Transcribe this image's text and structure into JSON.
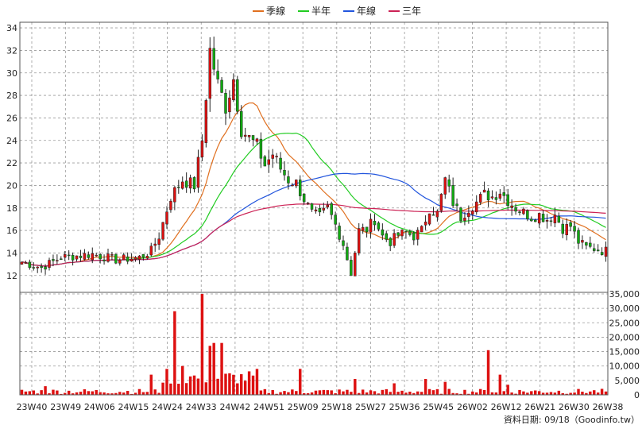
{
  "chart_data": {
    "type": "candlestick",
    "legend": {
      "position": "top-center",
      "items": [
        {
          "label": "季線",
          "color": "#e07020"
        },
        {
          "label": "半年",
          "color": "#22cc22"
        },
        {
          "label": "年線",
          "color": "#2255dd"
        },
        {
          "label": "三年",
          "color": "#cc2255"
        }
      ]
    },
    "price_axis": {
      "ticks": [
        12,
        14,
        16,
        18,
        20,
        22,
        24,
        26,
        28,
        30,
        32,
        34
      ],
      "range": [
        10.5,
        34.5
      ],
      "grid": true
    },
    "volume_axis": {
      "ticks": [
        "0",
        "5,000",
        "10,000",
        "15,000",
        "20,000",
        "25,000",
        "30,000",
        "35,000"
      ],
      "max": 35000
    },
    "x_labels": [
      "23W40",
      "23W49",
      "24W06",
      "24W15",
      "24W24",
      "24W33",
      "24W42",
      "24W51",
      "25W09",
      "25W18",
      "25W27",
      "25W36",
      "25W45",
      "26W02",
      "26W12",
      "26W21",
      "26W30",
      "26W38"
    ],
    "up_color": "#dd1111",
    "down_color": "#11aa11",
    "volume_color": "#dd1111",
    "close_anchors": [
      [
        0,
        13.2
      ],
      [
        5,
        12.7
      ],
      [
        10,
        13.6
      ],
      [
        18,
        13.9
      ],
      [
        24,
        13.4
      ],
      [
        30,
        13.6
      ],
      [
        33,
        14.2
      ],
      [
        35,
        15.5
      ],
      [
        38,
        19
      ],
      [
        41,
        20.5
      ],
      [
        44,
        20
      ],
      [
        46,
        24
      ],
      [
        48,
        32
      ],
      [
        50,
        29
      ],
      [
        52,
        27
      ],
      [
        54,
        29.5
      ],
      [
        56,
        25
      ],
      [
        58,
        24.2
      ],
      [
        60,
        23.5
      ],
      [
        62,
        21.8
      ],
      [
        64,
        22.8
      ],
      [
        66,
        21.5
      ],
      [
        68,
        20.5
      ],
      [
        70,
        20.2
      ],
      [
        72,
        18.8
      ],
      [
        74,
        17.5
      ],
      [
        76,
        17.2
      ],
      [
        78,
        18
      ],
      [
        80,
        16.5
      ],
      [
        82,
        14.8
      ],
      [
        84,
        12.2
      ],
      [
        86,
        16
      ],
      [
        88,
        16.1
      ],
      [
        90,
        17
      ],
      [
        92,
        15.5
      ],
      [
        94,
        15
      ],
      [
        96,
        15.6
      ],
      [
        98,
        15.8
      ],
      [
        100,
        15.5
      ],
      [
        102,
        16
      ],
      [
        104,
        18
      ],
      [
        106,
        17.5
      ],
      [
        108,
        20.5
      ],
      [
        110,
        18.5
      ],
      [
        112,
        17.2
      ],
      [
        114,
        18
      ],
      [
        116,
        18.5
      ],
      [
        118,
        19.2
      ],
      [
        120,
        19
      ],
      [
        122,
        19.5
      ],
      [
        124,
        18.7
      ],
      [
        126,
        18
      ],
      [
        128,
        17.6
      ],
      [
        130,
        17.2
      ],
      [
        132,
        17.4
      ],
      [
        134,
        17
      ],
      [
        136,
        17.4
      ],
      [
        138,
        16.2
      ],
      [
        140,
        16.4
      ],
      [
        142,
        15
      ],
      [
        144,
        14.5
      ],
      [
        146,
        14.4
      ],
      [
        148,
        14.2
      ]
    ],
    "volume_spikes": [
      [
        6,
        3000
      ],
      [
        33,
        7000
      ],
      [
        37,
        9000
      ],
      [
        39,
        29000
      ],
      [
        41,
        10000
      ],
      [
        46,
        35000
      ],
      [
        48,
        17000
      ],
      [
        49,
        18000
      ],
      [
        51,
        18000
      ],
      [
        60,
        9000
      ],
      [
        71,
        9000
      ],
      [
        85,
        5500
      ],
      [
        95,
        4000
      ],
      [
        103,
        5500
      ],
      [
        108,
        4500
      ],
      [
        119,
        15500
      ],
      [
        122,
        7000
      ],
      [
        124,
        3500
      ]
    ],
    "footer": "資料日期: 09/18（Goodinfo.tw）"
  }
}
